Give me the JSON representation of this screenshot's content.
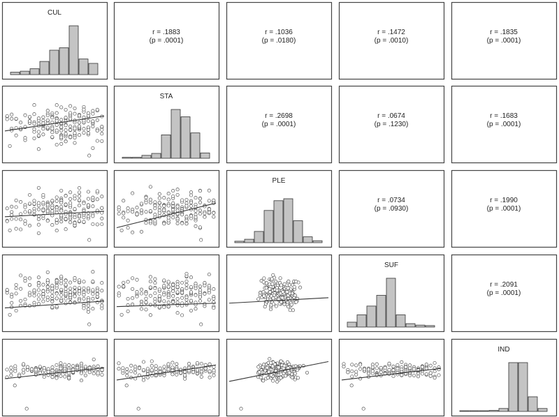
{
  "chart_data": {
    "type": "scatter-matrix",
    "variables": [
      "CUL",
      "STA",
      "PLE",
      "SUF",
      "IND"
    ],
    "colors": {
      "frame": "#444444",
      "bar_fill": "#c4c4c4",
      "bar_stroke": "#333333",
      "point_stroke": "#555555",
      "line": "#333333"
    },
    "histograms": [
      {
        "variable": "CUL",
        "values": [
          0.05,
          0.07,
          0.12,
          0.27,
          0.5,
          0.55,
          1.0,
          0.32,
          0.23
        ]
      },
      {
        "variable": "STA",
        "values": [
          0.02,
          0.02,
          0.06,
          0.1,
          0.48,
          1.0,
          0.85,
          0.52,
          0.11
        ]
      },
      {
        "variable": "PLE",
        "values": [
          0.03,
          0.07,
          0.23,
          0.66,
          0.86,
          0.9,
          0.45,
          0.12,
          0.04
        ]
      },
      {
        "variable": "SUF",
        "values": [
          0.1,
          0.25,
          0.43,
          0.65,
          1.0,
          0.25,
          0.07,
          0.04,
          0.03
        ]
      },
      {
        "variable": "IND",
        "values": [
          0.01,
          0.01,
          0.01,
          0.02,
          0.06,
          1.0,
          1.0,
          0.3,
          0.06
        ]
      }
    ],
    "correlations": [
      {
        "pair": [
          "CUL",
          "STA"
        ],
        "r_text": "r = .1883",
        "p_text": "(p = .0001)"
      },
      {
        "pair": [
          "CUL",
          "PLE"
        ],
        "r_text": "r = .1036",
        "p_text": "(p = .0180)"
      },
      {
        "pair": [
          "CUL",
          "SUF"
        ],
        "r_text": "r = .1472",
        "p_text": "(p = .0010)"
      },
      {
        "pair": [
          "CUL",
          "IND"
        ],
        "r_text": "r = .1835",
        "p_text": "(p = .0001)"
      },
      {
        "pair": [
          "STA",
          "PLE"
        ],
        "r_text": "r = .2698",
        "p_text": "(p = .0001)"
      },
      {
        "pair": [
          "STA",
          "SUF"
        ],
        "r_text": "r = .0674",
        "p_text": "(p = .1230)"
      },
      {
        "pair": [
          "STA",
          "IND"
        ],
        "r_text": "r = .1683",
        "p_text": "(p = .0001)"
      },
      {
        "pair": [
          "PLE",
          "SUF"
        ],
        "r_text": "r = .0734",
        "p_text": "(p = .0930)"
      },
      {
        "pair": [
          "PLE",
          "IND"
        ],
        "r_text": "r = .1990",
        "p_text": "(p = .0001)"
      },
      {
        "pair": [
          "SUF",
          "IND"
        ],
        "r_text": "r = .2091",
        "p_text": "(p = .0001)"
      }
    ],
    "scatter_plots": [
      {
        "x": "CUL",
        "y": "STA",
        "pattern": "wide-grid",
        "fit_line": [
          [
            0.0,
            0.42
          ],
          [
            1.0,
            0.64
          ]
        ]
      },
      {
        "x": "CUL",
        "y": "PLE",
        "pattern": "wide-grid",
        "fit_line": [
          [
            0.0,
            0.4
          ],
          [
            1.0,
            0.48
          ]
        ]
      },
      {
        "x": "STA",
        "y": "PLE",
        "pattern": "wide-grid",
        "fit_line": [
          [
            0.0,
            0.24
          ],
          [
            1.0,
            0.6
          ]
        ]
      },
      {
        "x": "CUL",
        "y": "SUF",
        "pattern": "wide-grid",
        "fit_line": [
          [
            0.0,
            0.3
          ],
          [
            1.0,
            0.4
          ]
        ]
      },
      {
        "x": "STA",
        "y": "SUF",
        "pattern": "wide-grid",
        "fit_line": [
          [
            0.0,
            0.32
          ],
          [
            1.0,
            0.37
          ]
        ]
      },
      {
        "x": "PLE",
        "y": "SUF",
        "pattern": "cloud",
        "fit_line": [
          [
            0.0,
            0.37
          ],
          [
            1.0,
            0.45
          ]
        ]
      },
      {
        "x": "CUL",
        "y": "IND",
        "pattern": "narrow-band",
        "fit_line": [
          [
            0.0,
            0.5
          ],
          [
            1.0,
            0.66
          ]
        ]
      },
      {
        "x": "STA",
        "y": "IND",
        "pattern": "narrow-band",
        "fit_line": [
          [
            0.0,
            0.48
          ],
          [
            1.0,
            0.7
          ]
        ]
      },
      {
        "x": "PLE",
        "y": "IND",
        "pattern": "dense-cloud",
        "fit_line": [
          [
            0.0,
            0.46
          ],
          [
            1.0,
            0.75
          ]
        ]
      },
      {
        "x": "SUF",
        "y": "IND",
        "pattern": "narrow-band",
        "fit_line": [
          [
            0.0,
            0.48
          ],
          [
            1.0,
            0.65
          ]
        ]
      }
    ]
  }
}
